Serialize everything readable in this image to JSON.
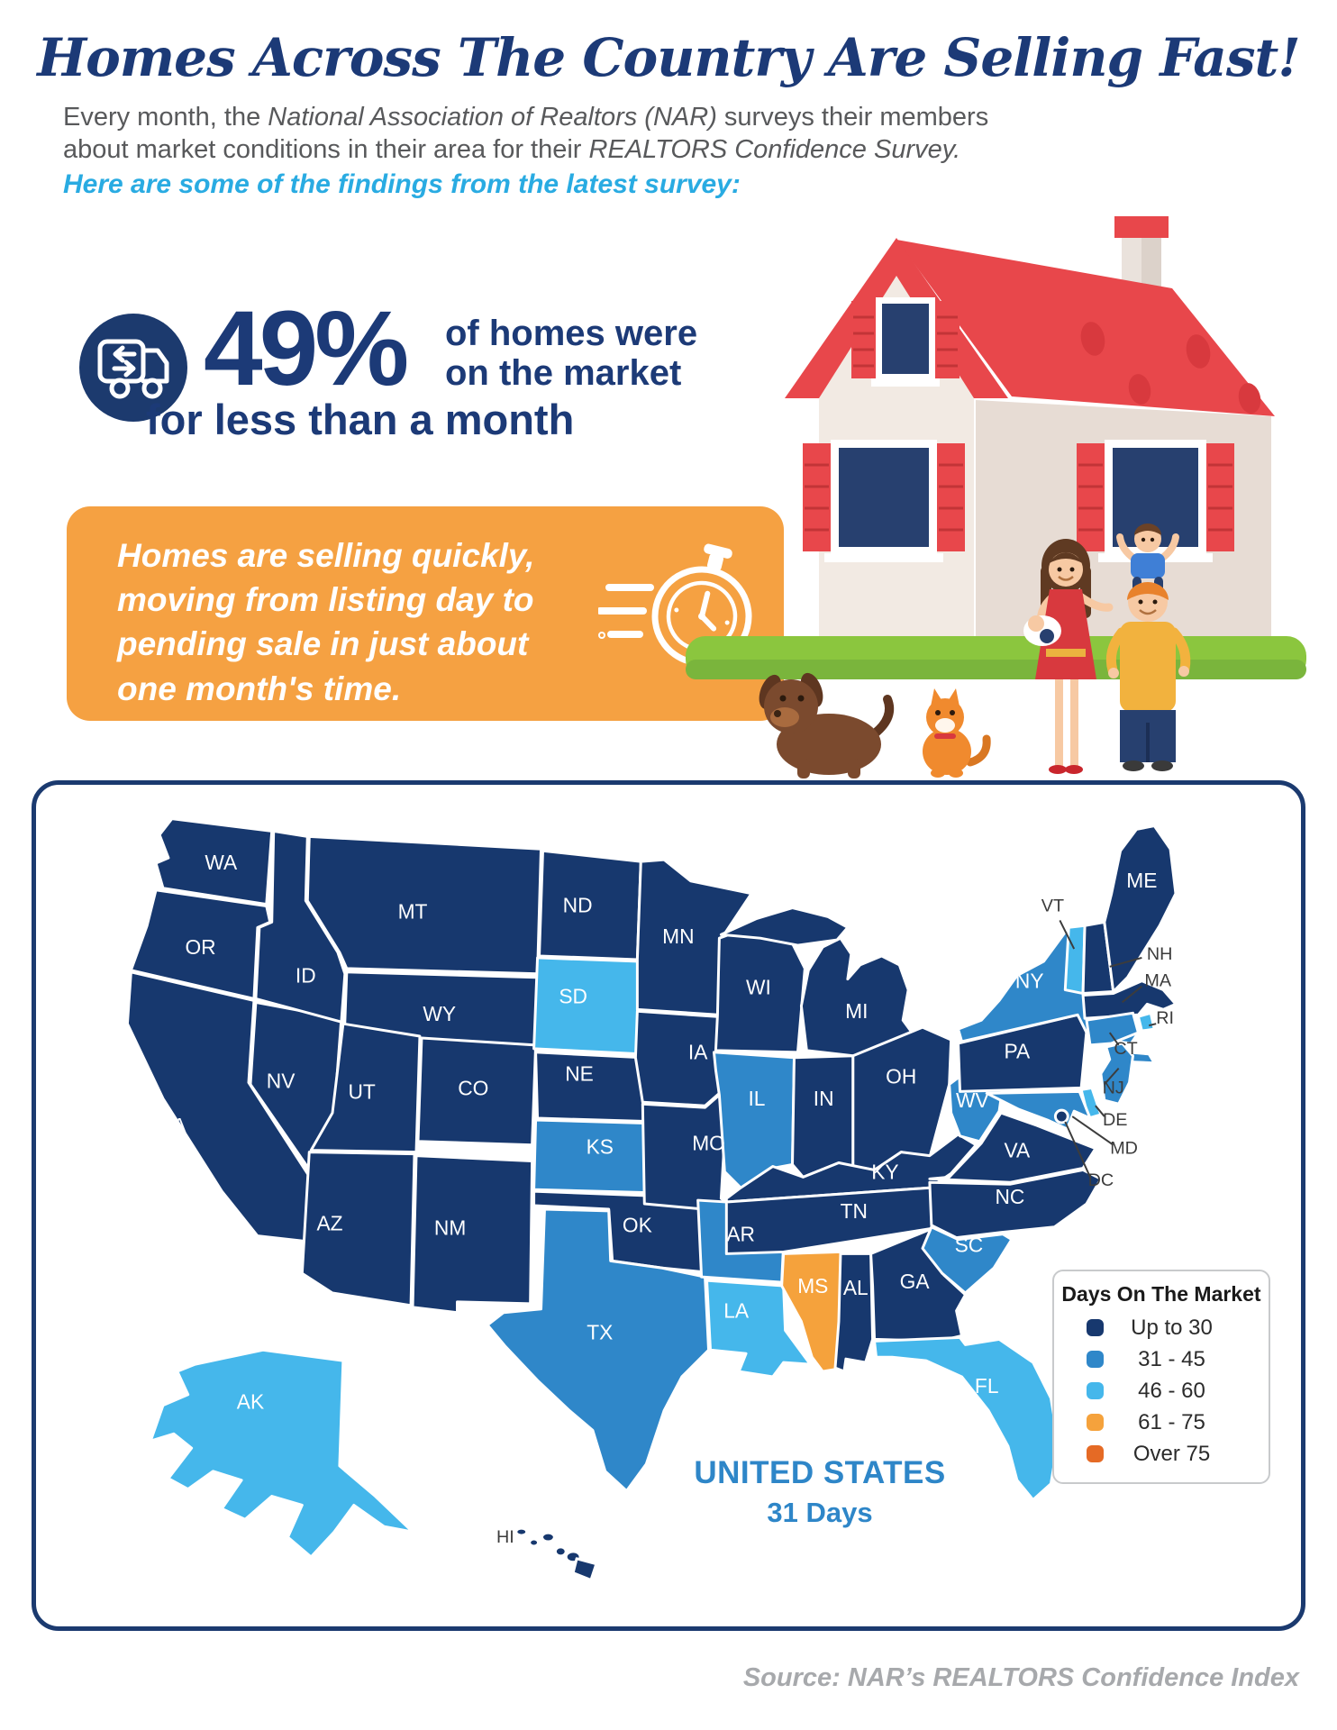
{
  "header": {
    "title": "Homes Across The Country Are Selling Fast!",
    "intro_lines": [
      [
        {
          "t": "Every month, the ",
          "i": false
        },
        {
          "t": "National Association of Realtors (NAR)",
          "i": true
        },
        {
          "t": " surveys their members",
          "i": false
        }
      ],
      [
        {
          "t": "about market conditions in their area for their ",
          "i": false
        },
        {
          "t": "REALTORS Confidence Survey.",
          "i": true
        }
      ]
    ],
    "findings_line": "Here are some of the findings from the latest survey:"
  },
  "stat": {
    "icon": "moving-truck-icon",
    "value": "49%",
    "line1": "of homes were",
    "line2": "on the market",
    "line3": "for less than a month"
  },
  "callout_box": {
    "icon": "stopwatch-icon",
    "bg": "#F5A142",
    "lines": [
      "Homes are selling quickly,",
      "moving from listing day to",
      "pending sale in just about",
      "one month's time."
    ]
  },
  "chart_data": {
    "type": "heatmap",
    "subtype": "us-choropleth-map",
    "title": "Days On The Market",
    "legend": [
      {
        "label": "Up to 30",
        "color": "#17386E"
      },
      {
        "label": "31 - 45",
        "color": "#2F87C9"
      },
      {
        "label": "46 - 60",
        "color": "#45B7EB"
      },
      {
        "label": "61 - 75",
        "color": "#F5A23C"
      },
      {
        "label": "Over 75",
        "color": "#E56A25"
      }
    ],
    "annotation": {
      "line1": "UNITED STATES",
      "line2": "31 Days"
    },
    "values": {
      "WA": 0,
      "OR": 0,
      "CA": 0,
      "NV": 0,
      "ID": 0,
      "MT": 0,
      "WY": 0,
      "UT": 0,
      "CO": 0,
      "AZ": 0,
      "NM": 0,
      "ND": 0,
      "SD": 2,
      "NE": 0,
      "KS": 1,
      "OK": 0,
      "TX": 1,
      "MN": 0,
      "IA": 0,
      "MO": 0,
      "AR": 1,
      "LA": 2,
      "WI": 0,
      "IL": 1,
      "IN": 0,
      "MI": 0,
      "OH": 0,
      "KY": 0,
      "TN": 0,
      "MS": 3,
      "AL": 0,
      "GA": 0,
      "SC": 1,
      "NC": 0,
      "VA": 0,
      "WV": 1,
      "PA": 0,
      "NY": 1,
      "NJ": 1,
      "DE": 2,
      "MD": 1,
      "DC": 0,
      "VT": 2,
      "NH": 0,
      "MA": 0,
      "RI": 2,
      "CT": 1,
      "ME": 0,
      "FL": 2,
      "AK": 2,
      "HI": 0
    }
  },
  "source": "Source: NAR’s REALTORS Confidence Index",
  "colors": {
    "title_navy": "#1C3A77",
    "body_gray": "#58595B",
    "accent_light_blue": "#29ABE2",
    "callout_orange": "#F5A142",
    "map_border_navy": "#1B3A6F",
    "us_summary_blue": "#2E86C8",
    "source_gray": "#A7A9AC"
  }
}
